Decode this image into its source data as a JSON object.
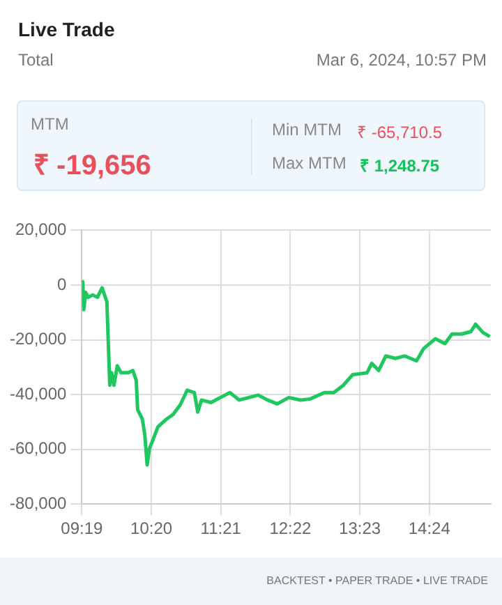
{
  "chart_data": {
    "type": "line",
    "title": "Live Trade",
    "subtitle": "Total",
    "annotations": [
      "Mar 6, 2024, 10:57 PM",
      "MTM",
      "₹ -19,656",
      "Min MTM",
      "₹ -65,710.5",
      "Max MTM",
      "₹ 1,248.75",
      "BACKTEST • PAPER TRADE • LIVE TRADE"
    ],
    "x": [
      9.317,
      9.33,
      9.345,
      9.372,
      9.407,
      9.475,
      9.545,
      9.613,
      9.648,
      9.683,
      9.703,
      9.725,
      9.752,
      9.787,
      9.835,
      9.89,
      9.995,
      10.063,
      10.112,
      10.133,
      10.202,
      10.237,
      10.272,
      10.305,
      10.362,
      10.43,
      10.548,
      10.65,
      10.755,
      10.858,
      10.963,
      11.012,
      11.067,
      11.205,
      11.343,
      11.482,
      11.62,
      11.758,
      11.897,
      12.035,
      12.173,
      12.345,
      12.518,
      12.657,
      12.865,
      13.003,
      13.142,
      13.28,
      13.487,
      13.557,
      13.66,
      13.763,
      13.902,
      14.04,
      14.213,
      14.317,
      14.49,
      14.628,
      14.732,
      14.87,
      15.008,
      15.077,
      15.182,
      15.285
    ],
    "series": [
      {
        "color": "#1ec85f",
        "values": [
          0,
          1200,
          -9000,
          -2700,
          -4500,
          -3600,
          -4500,
          -1000,
          -3600,
          -6200,
          -20500,
          -36600,
          -32000,
          -36600,
          -29500,
          -32000,
          -32000,
          -31200,
          -34800,
          -45500,
          -49000,
          -54500,
          -65700,
          -59800,
          -56200,
          -51800,
          -49100,
          -47300,
          -43800,
          -38400,
          -39300,
          -46400,
          -42000,
          -42900,
          -41100,
          -39300,
          -42000,
          -41100,
          -40200,
          -42000,
          -43400,
          -41100,
          -42000,
          -41600,
          -39300,
          -39300,
          -36600,
          -32700,
          -32100,
          -28600,
          -31200,
          -25900,
          -26800,
          -25900,
          -27700,
          -23200,
          -19600,
          -21400,
          -17900,
          -17900,
          -17000,
          -14300,
          -17300,
          -18800
        ]
      }
    ],
    "xlim": [
      9.3167,
      15.3
    ],
    "xticks": [
      {
        "value": 9.3167,
        "label": "09:19"
      },
      {
        "value": 10.3333,
        "label": "10:20"
      },
      {
        "value": 11.35,
        "label": "11:21"
      },
      {
        "value": 12.3667,
        "label": "12:22"
      },
      {
        "value": 13.3833,
        "label": "13:23"
      },
      {
        "value": 14.4,
        "label": "14:24"
      }
    ],
    "ylim": [
      -80000,
      20000
    ],
    "yticks": [
      {
        "value": -80000,
        "label": "-80,000"
      },
      {
        "value": -60000,
        "label": "-60,000"
      },
      {
        "value": -40000,
        "label": "-40,000"
      },
      {
        "value": -20000,
        "label": "-20,000"
      },
      0,
      {
        "value": 20000,
        "label": "20,000"
      }
    ],
    "grid": true,
    "legend": false,
    "marker": "none",
    "line_style": "solid"
  }
}
